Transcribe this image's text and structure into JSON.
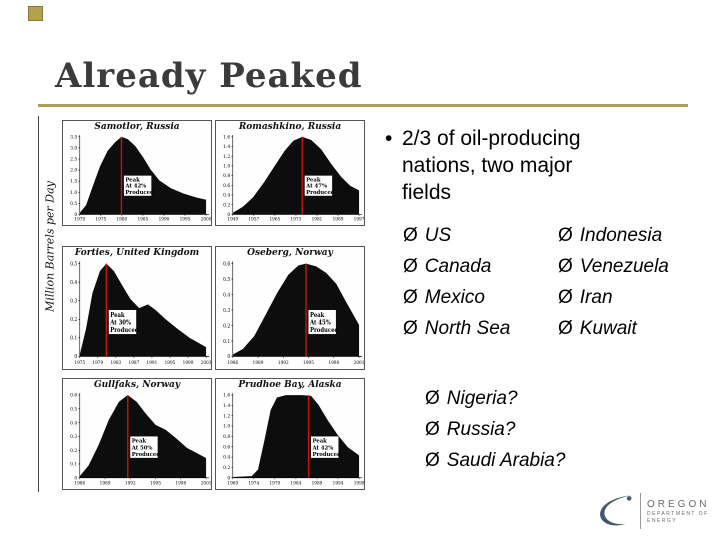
{
  "slide": {
    "title": "Already Peaked",
    "accent_color": "#ad9f56",
    "y_axis_label": "Million Barrels per Day",
    "bullet": {
      "marker": "•",
      "text": "2/3 of oil-producing nations, two major fields"
    },
    "list_marker": "Ø",
    "columns": {
      "left": [
        "US",
        "Canada",
        "Mexico",
        "North Sea"
      ],
      "right": [
        "Indonesia",
        "Venezuela",
        "Iran",
        "Kuwait"
      ]
    },
    "questions": [
      "Nigeria?",
      "Russia?",
      "Saudi Arabia?"
    ],
    "logo": {
      "line1": "OREGON",
      "line2": "DEPARTMENT OF",
      "line3": "ENERGY"
    },
    "logo_color": "#47586b"
  },
  "chart_data": [
    {
      "type": "area",
      "title": "Samotlor, Russia",
      "peak_label": [
        "Peak",
        "At 42%",
        "Produced"
      ],
      "peak_x": 0.33,
      "x_ticks": [
        "1970",
        "1975",
        "1980",
        "1985",
        "1990",
        "1995",
        "2000"
      ],
      "y_ticks": [
        "3.5",
        "3.0",
        "2.5",
        "2.0",
        "1.5",
        "1.0",
        "0.5",
        "0"
      ],
      "shape": [
        [
          0,
          0.02
        ],
        [
          0.05,
          0.12
        ],
        [
          0.1,
          0.35
        ],
        [
          0.16,
          0.62
        ],
        [
          0.22,
          0.82
        ],
        [
          0.28,
          0.93
        ],
        [
          0.33,
          1
        ],
        [
          0.38,
          0.97
        ],
        [
          0.44,
          0.88
        ],
        [
          0.5,
          0.74
        ],
        [
          0.56,
          0.58
        ],
        [
          0.63,
          0.44
        ],
        [
          0.72,
          0.34
        ],
        [
          0.82,
          0.27
        ],
        [
          0.92,
          0.22
        ],
        [
          1,
          0.19
        ]
      ]
    },
    {
      "type": "area",
      "title": "Romashkino, Russia",
      "peak_label": [
        "Peak",
        "At 47%",
        "Produced"
      ],
      "peak_x": 0.55,
      "x_ticks": [
        "1949",
        "1957",
        "1965",
        "1973",
        "1981",
        "1989",
        "1997"
      ],
      "y_ticks": [
        "1.6",
        "1.4",
        "1.2",
        "1.0",
        "0.8",
        "0.6",
        "0.4",
        "0.2",
        "0"
      ],
      "shape": [
        [
          0,
          0.02
        ],
        [
          0.08,
          0.1
        ],
        [
          0.16,
          0.22
        ],
        [
          0.25,
          0.42
        ],
        [
          0.33,
          0.62
        ],
        [
          0.41,
          0.82
        ],
        [
          0.48,
          0.95
        ],
        [
          0.55,
          1
        ],
        [
          0.62,
          0.96
        ],
        [
          0.7,
          0.84
        ],
        [
          0.78,
          0.65
        ],
        [
          0.86,
          0.48
        ],
        [
          0.93,
          0.37
        ],
        [
          1,
          0.31
        ]
      ]
    },
    {
      "type": "area",
      "title": "Forties, United Kingdom",
      "peak_label": [
        "Peak",
        "At 30%",
        "Produced"
      ],
      "peak_x": 0.21,
      "x_ticks": [
        "1975",
        "1979",
        "1983",
        "1987",
        "1991",
        "1995",
        "1999",
        "2003"
      ],
      "y_ticks": [
        "0.5",
        "0.4",
        "0.3",
        "0.2",
        "0.1",
        "0"
      ],
      "shape": [
        [
          0,
          0.02
        ],
        [
          0.05,
          0.3
        ],
        [
          0.1,
          0.68
        ],
        [
          0.16,
          0.92
        ],
        [
          0.21,
          1
        ],
        [
          0.27,
          0.92
        ],
        [
          0.33,
          0.78
        ],
        [
          0.4,
          0.62
        ],
        [
          0.47,
          0.52
        ],
        [
          0.54,
          0.56
        ],
        [
          0.6,
          0.5
        ],
        [
          0.68,
          0.4
        ],
        [
          0.77,
          0.3
        ],
        [
          0.87,
          0.2
        ],
        [
          1,
          0.1
        ]
      ]
    },
    {
      "type": "area",
      "title": "Oseberg, Norway",
      "peak_label": [
        "Peak",
        "At 45%",
        "Produced"
      ],
      "peak_x": 0.58,
      "x_ticks": [
        "1986",
        "1989",
        "1992",
        "1995",
        "1998",
        "2001"
      ],
      "y_ticks": [
        "0.6",
        "0.5",
        "0.4",
        "0.3",
        "0.2",
        "0.1",
        "0"
      ],
      "shape": [
        [
          0,
          0.02
        ],
        [
          0.08,
          0.08
        ],
        [
          0.17,
          0.22
        ],
        [
          0.26,
          0.45
        ],
        [
          0.35,
          0.68
        ],
        [
          0.44,
          0.88
        ],
        [
          0.52,
          0.98
        ],
        [
          0.58,
          1
        ],
        [
          0.66,
          0.97
        ],
        [
          0.74,
          0.9
        ],
        [
          0.82,
          0.78
        ],
        [
          0.9,
          0.58
        ],
        [
          1,
          0.34
        ]
      ]
    },
    {
      "type": "area",
      "title": "Gullfaks, Norway",
      "peak_label": [
        "Peak",
        "At 50%",
        "Produced"
      ],
      "peak_x": 0.38,
      "x_ticks": [
        "1986",
        "1989",
        "1992",
        "1995",
        "1998",
        "2001"
      ],
      "y_ticks": [
        "0.6",
        "0.5",
        "0.4",
        "0.3",
        "0.2",
        "0.1",
        "0"
      ],
      "shape": [
        [
          0,
          0.02
        ],
        [
          0.07,
          0.15
        ],
        [
          0.15,
          0.4
        ],
        [
          0.23,
          0.7
        ],
        [
          0.31,
          0.92
        ],
        [
          0.38,
          1
        ],
        [
          0.45,
          0.92
        ],
        [
          0.52,
          0.78
        ],
        [
          0.6,
          0.64
        ],
        [
          0.68,
          0.58
        ],
        [
          0.76,
          0.48
        ],
        [
          0.85,
          0.36
        ],
        [
          1,
          0.24
        ]
      ]
    },
    {
      "type": "area",
      "title": "Prudhoe Bay, Alaska",
      "peak_label": [
        "Peak",
        "At 42%",
        "Produced"
      ],
      "peak_x": 0.6,
      "x_ticks": [
        "1969",
        "1974",
        "1979",
        "1984",
        "1989",
        "1994",
        "1999"
      ],
      "y_ticks": [
        "1.6",
        "1.4",
        "1.2",
        "1.0",
        "0.8",
        "0.6",
        "0.4",
        "0.2",
        "0"
      ],
      "shape": [
        [
          0,
          0.01
        ],
        [
          0.15,
          0.02
        ],
        [
          0.2,
          0.1
        ],
        [
          0.25,
          0.45
        ],
        [
          0.3,
          0.82
        ],
        [
          0.35,
          0.97
        ],
        [
          0.42,
          1
        ],
        [
          0.55,
          1
        ],
        [
          0.62,
          0.99
        ],
        [
          0.68,
          0.88
        ],
        [
          0.75,
          0.7
        ],
        [
          0.83,
          0.52
        ],
        [
          0.91,
          0.37
        ],
        [
          1,
          0.27
        ]
      ]
    }
  ]
}
